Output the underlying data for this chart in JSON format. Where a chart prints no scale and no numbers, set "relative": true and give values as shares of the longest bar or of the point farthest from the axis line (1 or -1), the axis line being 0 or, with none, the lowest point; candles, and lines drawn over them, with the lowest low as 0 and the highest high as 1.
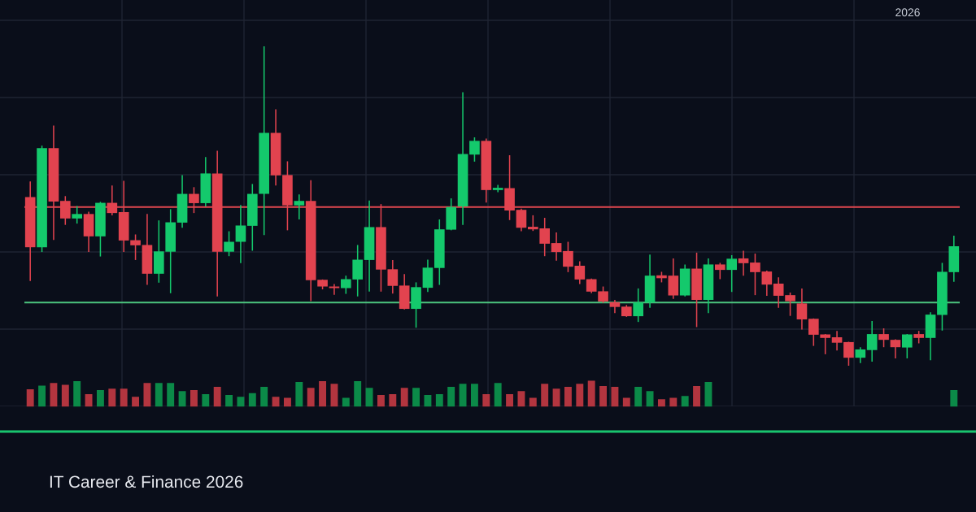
{
  "chart_data": [
    {
      "type": "candlestick",
      "relative": true,
      "grid": true,
      "categories": [
        null,
        null,
        null,
        null,
        null,
        null,
        null,
        null,
        null,
        null,
        null,
        null,
        null,
        null,
        null,
        null,
        null,
        null,
        null,
        null,
        null,
        null,
        null,
        null,
        null,
        null,
        null,
        null,
        null,
        null,
        null,
        null,
        null,
        null,
        null,
        null,
        null,
        null,
        null,
        null,
        null,
        null,
        null,
        null,
        null,
        null,
        null,
        null,
        null,
        null,
        null,
        null,
        null,
        null,
        null,
        null,
        null,
        null,
        null,
        null,
        null,
        null,
        null,
        null,
        null,
        null,
        null,
        null,
        null,
        null,
        null,
        null,
        null,
        null,
        null,
        null,
        null,
        null,
        null,
        null
      ],
      "ohlc": [
        [
          0.528,
          0.577,
          0.265,
          0.371
        ],
        [
          0.371,
          0.689,
          0.356,
          0.681
        ],
        [
          0.681,
          0.752,
          0.394,
          0.514
        ],
        [
          0.516,
          0.531,
          0.441,
          0.461
        ],
        [
          0.461,
          0.5,
          0.445,
          0.475
        ],
        [
          0.475,
          0.482,
          0.356,
          0.405
        ],
        [
          0.405,
          0.513,
          0.342,
          0.51
        ],
        [
          0.51,
          0.564,
          0.471,
          0.478
        ],
        [
          0.481,
          0.579,
          0.356,
          0.392
        ],
        [
          0.393,
          0.411,
          0.331,
          0.377
        ],
        [
          0.378,
          0.475,
          0.253,
          0.288
        ],
        [
          0.288,
          0.455,
          0.26,
          0.358
        ],
        [
          0.357,
          0.49,
          0.227,
          0.449
        ],
        [
          0.448,
          0.597,
          0.432,
          0.538
        ],
        [
          0.538,
          0.559,
          0.478,
          0.509
        ],
        [
          0.509,
          0.653,
          0.499,
          0.602
        ],
        [
          0.602,
          0.673,
          0.217,
          0.357
        ],
        [
          0.357,
          0.421,
          0.343,
          0.388
        ],
        [
          0.388,
          0.503,
          0.321,
          0.439
        ],
        [
          0.438,
          0.569,
          0.36,
          0.538
        ],
        [
          0.538,
          1,
          0.409,
          0.729
        ],
        [
          0.729,
          0.803,
          0.564,
          0.596
        ],
        [
          0.597,
          0.64,
          0.424,
          0.502
        ],
        [
          0.502,
          0.536,
          0.458,
          0.516
        ],
        [
          0.516,
          0.581,
          0.202,
          0.268
        ],
        [
          0.269,
          0.27,
          0.239,
          0.248
        ],
        [
          0.248,
          0.256,
          0.222,
          0.243
        ],
        [
          0.243,
          0.282,
          0.225,
          0.271
        ],
        [
          0.27,
          0.378,
          0.217,
          0.332
        ],
        [
          0.331,
          0.517,
          0.232,
          0.434
        ],
        [
          0.434,
          0.506,
          0.232,
          0.301
        ],
        [
          0.302,
          0.331,
          0.226,
          0.25
        ],
        [
          0.251,
          0.287,
          0.176,
          0.178
        ],
        [
          0.178,
          0.261,
          0.119,
          0.246
        ],
        [
          0.244,
          0.332,
          0.231,
          0.307
        ],
        [
          0.306,
          0.458,
          0.253,
          0.427
        ],
        [
          0.426,
          0.524,
          0.424,
          0.497
        ],
        [
          0.499,
          0.856,
          0.441,
          0.663
        ],
        [
          0.661,
          0.715,
          0.639,
          0.704
        ],
        [
          0.704,
          0.711,
          0.511,
          0.55
        ],
        [
          0.55,
          0.566,
          0.543,
          0.557
        ],
        [
          0.556,
          0.659,
          0.456,
          0.486
        ],
        [
          0.488,
          0.492,
          0.421,
          0.432
        ],
        [
          0.435,
          0.471,
          0.422,
          0.427
        ],
        [
          0.43,
          0.463,
          0.343,
          0.382
        ],
        [
          0.384,
          0.417,
          0.329,
          0.356
        ],
        [
          0.359,
          0.388,
          0.293,
          0.31
        ],
        [
          0.313,
          0.327,
          0.256,
          0.27
        ],
        [
          0.271,
          0.273,
          0.227,
          0.232
        ],
        [
          0.233,
          0.248,
          0.197,
          0.201
        ],
        [
          0.199,
          0.206,
          0.165,
          0.184
        ],
        [
          0.185,
          0.19,
          0.153,
          0.155
        ],
        [
          0.155,
          0.242,
          0.137,
          0.198
        ],
        [
          0.198,
          0.348,
          0.181,
          0.282
        ],
        [
          0.283,
          0.294,
          0.261,
          0.274
        ],
        [
          0.282,
          0.336,
          0.209,
          0.22
        ],
        [
          0.22,
          0.317,
          0.217,
          0.304
        ],
        [
          0.304,
          0.354,
          0.121,
          0.206
        ],
        [
          0.206,
          0.336,
          0.165,
          0.317
        ],
        [
          0.317,
          0.322,
          0.271,
          0.3
        ],
        [
          0.3,
          0.346,
          0.231,
          0.335
        ],
        [
          0.336,
          0.36,
          0.282,
          0.321
        ],
        [
          0.323,
          0.351,
          0.221,
          0.293
        ],
        [
          0.295,
          0.298,
          0.219,
          0.254
        ],
        [
          0.257,
          0.277,
          0.181,
          0.219
        ],
        [
          0.221,
          0.229,
          0.156,
          0.202
        ],
        [
          0.195,
          0.242,
          0.113,
          0.145
        ],
        [
          0.147,
          0.148,
          0.062,
          0.097
        ],
        [
          0.098,
          0.099,
          0.036,
          0.087
        ],
        [
          0.089,
          0.109,
          0.048,
          0.072
        ],
        [
          0.074,
          0.075,
          0,
          0.025
        ],
        [
          0.025,
          0.058,
          0.008,
          0.051
        ],
        [
          0.049,
          0.14,
          0.013,
          0.099
        ],
        [
          0.099,
          0.117,
          0.058,
          0.081
        ],
        [
          0.081,
          0.083,
          0.023,
          0.058
        ],
        [
          0.057,
          0.099,
          0.023,
          0.098
        ],
        [
          0.099,
          0.109,
          0.07,
          0.087
        ],
        [
          0.087,
          0.167,
          0.017,
          0.16
        ],
        [
          0.159,
          0.322,
          0.11,
          0.294
        ],
        [
          0.293,
          0.407,
          0.263,
          0.374
        ]
      ],
      "colors": [
        "#e2434f",
        "#14c96c",
        "#e2434f",
        "#e2434f",
        "#14c96c",
        "#e2434f",
        "#14c96c",
        "#e2434f",
        "#e2434f",
        "#e2434f",
        "#e2434f",
        "#14c96c",
        "#14c96c",
        "#14c96c",
        "#e2434f",
        "#14c96c",
        "#e2434f",
        "#14c96c",
        "#14c96c",
        "#14c96c",
        "#14c96c",
        "#e2434f",
        "#e2434f",
        "#14c96c",
        "#e2434f",
        "#e2434f",
        "#e2434f",
        "#14c96c",
        "#14c96c",
        "#14c96c",
        "#e2434f",
        "#e2434f",
        "#e2434f",
        "#14c96c",
        "#14c96c",
        "#14c96c",
        "#14c96c",
        "#14c96c",
        "#14c96c",
        "#e2434f",
        "#14c96c",
        "#e2434f",
        "#e2434f",
        "#e2434f",
        "#e2434f",
        "#e2434f",
        "#e2434f",
        "#e2434f",
        "#e2434f",
        "#e2434f",
        "#e2434f",
        "#e2434f",
        "#14c96c",
        "#14c96c",
        "#e2434f",
        "#e2434f",
        "#14c96c",
        "#e2434f",
        "#14c96c",
        "#e2434f",
        "#14c96c",
        "#e2434f",
        "#e2434f",
        "#e2434f",
        "#e2434f",
        "#e2434f",
        "#e2434f",
        "#e2434f",
        "#e2434f",
        "#e2434f",
        "#e2434f",
        "#14c96c",
        "#14c96c",
        "#e2434f",
        "#e2434f",
        "#14c96c",
        "#e2434f",
        "#14c96c",
        "#14c96c",
        "#14c96c"
      ],
      "ref_lines": [
        {
          "axis": "y",
          "value": 0.497,
          "color": "#e0474f"
        },
        {
          "axis": "y",
          "value": 0.198,
          "color": "#4cc47e"
        }
      ],
      "annotations": [
        "2026",
        "IT Career & Finance 2026"
      ]
    },
    {
      "type": "bar",
      "relative": true,
      "categories": [
        null,
        null,
        null,
        null,
        null,
        null,
        null,
        null,
        null,
        null,
        null,
        null,
        null,
        null,
        null,
        null,
        null,
        null,
        null,
        null,
        null,
        null,
        null,
        null,
        null,
        null,
        null,
        null,
        null,
        null,
        null,
        null,
        null,
        null,
        null,
        null,
        null,
        null,
        null,
        null,
        null,
        null,
        null,
        null,
        null,
        null,
        null,
        null,
        null,
        null,
        null,
        null,
        null,
        null,
        null,
        null,
        null,
        null,
        null,
        null,
        null,
        null,
        null,
        null,
        null,
        null,
        null,
        null,
        null,
        null,
        null,
        null,
        null,
        null,
        null,
        null,
        null,
        null,
        null,
        null
      ],
      "values": [
        0.67,
        0.81,
        0.91,
        0.84,
        0.98,
        0.48,
        0.64,
        0.69,
        0.69,
        0.38,
        0.91,
        0.91,
        0.91,
        0.6,
        0.64,
        0.48,
        0.76,
        0.45,
        0.38,
        0.52,
        0.76,
        0.38,
        0.34,
        0.95,
        0.72,
        0.98,
        0.88,
        0.34,
        0.98,
        0.72,
        0.45,
        0.48,
        0.72,
        0.72,
        0.45,
        0.48,
        0.76,
        0.88,
        0.88,
        0.48,
        0.91,
        0.48,
        0.6,
        0.34,
        0.88,
        0.69,
        0.76,
        0.88,
        1,
        0.79,
        0.76,
        0.34,
        0.76,
        0.6,
        0.29,
        0.34,
        0.41,
        0.79,
        0.95,
        null,
        null,
        null,
        null,
        null,
        null,
        null,
        null,
        null,
        null,
        null,
        null,
        null,
        null,
        null,
        null,
        null,
        null,
        null,
        null,
        0.64
      ],
      "colors": [
        "#b3353f",
        "#0b8a48",
        "#b3353f",
        "#b3353f",
        "#0b8a48",
        "#b3353f",
        "#0b8a48",
        "#b3353f",
        "#b3353f",
        "#b3353f",
        "#b3353f",
        "#0b8a48",
        "#0b8a48",
        "#0b8a48",
        "#b3353f",
        "#0b8a48",
        "#b3353f",
        "#0b8a48",
        "#0b8a48",
        "#0b8a48",
        "#0b8a48",
        "#b3353f",
        "#b3353f",
        "#0b8a48",
        "#b3353f",
        "#b3353f",
        "#b3353f",
        "#0b8a48",
        "#0b8a48",
        "#0b8a48",
        "#b3353f",
        "#b3353f",
        "#b3353f",
        "#0b8a48",
        "#0b8a48",
        "#0b8a48",
        "#0b8a48",
        "#0b8a48",
        "#0b8a48",
        "#b3353f",
        "#0b8a48",
        "#b3353f",
        "#b3353f",
        "#b3353f",
        "#b3353f",
        "#b3353f",
        "#b3353f",
        "#b3353f",
        "#b3353f",
        "#b3353f",
        "#b3353f",
        "#b3353f",
        "#0b8a48",
        "#0b8a48",
        "#b3353f",
        "#b3353f",
        "#0b8a48",
        "#b3353f",
        "#0b8a48",
        null,
        null,
        null,
        null,
        null,
        null,
        null,
        null,
        null,
        null,
        null,
        null,
        null,
        null,
        null,
        null,
        null,
        null,
        null,
        null,
        "#0b8a48"
      ]
    }
  ]
}
